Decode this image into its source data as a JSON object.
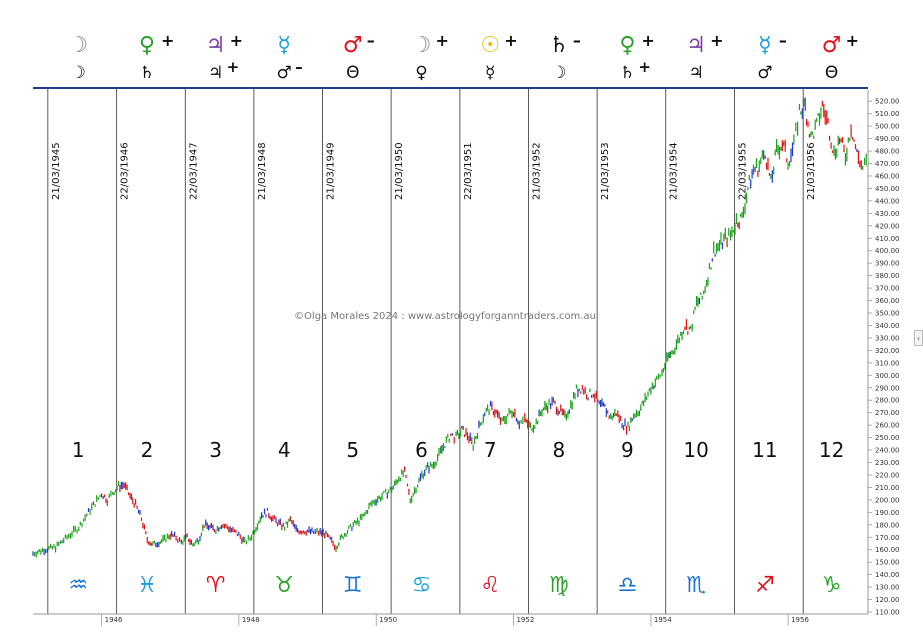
{
  "watermark": "©Olga Morales 2024 : www.astrologyforganntraders.com.au",
  "colors": {
    "moon": "#888888",
    "venus": "#2ca02c",
    "jupiter": "#7b3fa0",
    "mercury": "#1a9fd9",
    "mars": "#e0101e",
    "sun": "#f0b800",
    "saturn": "#111111",
    "bar_up": "#1aa01a",
    "bar_down": "#e01010",
    "bar_mid": "#1a3ad0"
  },
  "header": [
    {
      "top": "☽",
      "top_color": "moon",
      "top_sign": "",
      "bottom": "☽",
      "bottom_sign": ""
    },
    {
      "top": "♀",
      "top_color": "venus",
      "top_sign": "+",
      "bottom": "♄",
      "bottom_sign": ""
    },
    {
      "top": "♃",
      "top_color": "jupiter",
      "top_sign": "+",
      "bottom": "♃",
      "bottom_sign": "+"
    },
    {
      "top": "☿",
      "top_color": "mercury",
      "top_sign": "",
      "bottom": "♂",
      "bottom_sign": "–"
    },
    {
      "top": "♂",
      "top_color": "mars",
      "top_sign": "–",
      "bottom": "Θ",
      "bottom_sign": ""
    },
    {
      "top": "☽",
      "top_color": "moon",
      "top_sign": "+",
      "bottom": "♀",
      "bottom_sign": ""
    },
    {
      "top": "☉",
      "top_color": "sun",
      "top_sign": "+",
      "bottom": "☿",
      "bottom_sign": ""
    },
    {
      "top": "♄",
      "top_color": "saturn",
      "top_sign": "–",
      "bottom": "☽",
      "bottom_sign": ""
    },
    {
      "top": "♀",
      "top_color": "venus",
      "top_sign": "+",
      "bottom": "♄",
      "bottom_sign": "+"
    },
    {
      "top": "♃",
      "top_color": "jupiter",
      "top_sign": "+",
      "bottom": "♃",
      "bottom_sign": ""
    },
    {
      "top": "☿",
      "top_color": "mercury",
      "top_sign": "–",
      "bottom": "♂",
      "bottom_sign": ""
    },
    {
      "top": "♂",
      "top_color": "mars",
      "top_sign": "+",
      "bottom": "Θ",
      "bottom_sign": ""
    }
  ],
  "signs": [
    {
      "glyph": "♒",
      "color": "#1a73d9"
    },
    {
      "glyph": "♓",
      "color": "#1a9fd9"
    },
    {
      "glyph": "♈",
      "color": "#e0101e"
    },
    {
      "glyph": "♉",
      "color": "#2ca02c"
    },
    {
      "glyph": "♊",
      "color": "#1a73d9"
    },
    {
      "glyph": "♋",
      "color": "#1a9fd9"
    },
    {
      "glyph": "♌",
      "color": "#e0101e"
    },
    {
      "glyph": "♍",
      "color": "#2ca02c"
    },
    {
      "glyph": "♎",
      "color": "#1a73d9"
    },
    {
      "glyph": "♏",
      "color": "#1a73d9"
    },
    {
      "glyph": "♐",
      "color": "#e0101e"
    },
    {
      "glyph": "♑",
      "color": "#2ca02c"
    }
  ],
  "house_numbers": [
    "1",
    "2",
    "3",
    "4",
    "5",
    "6",
    "7",
    "8",
    "9",
    "10",
    "11",
    "12"
  ],
  "chart_data": {
    "type": "line",
    "title": "",
    "xlabel": "",
    "ylabel": "",
    "xlim": [
      "1945-01-01",
      "1957-03-01"
    ],
    "ylim": [
      110,
      525
    ],
    "y_ticks": [
      110,
      120,
      130,
      140,
      150,
      160,
      170,
      180,
      190,
      200,
      210,
      220,
      230,
      240,
      250,
      260,
      270,
      280,
      290,
      300,
      310,
      320,
      330,
      340,
      350,
      360,
      370,
      380,
      390,
      400,
      410,
      420,
      430,
      440,
      450,
      460,
      470,
      480,
      490,
      500,
      510,
      520
    ],
    "x_year_labels": [
      {
        "date": "1946-01-01",
        "label": "1946"
      },
      {
        "date": "1948-01-01",
        "label": "1948"
      },
      {
        "date": "1950-01-01",
        "label": "1950"
      },
      {
        "date": "1952-01-01",
        "label": "1952"
      },
      {
        "date": "1954-01-01",
        "label": "1954"
      },
      {
        "date": "1956-01-01",
        "label": "1956"
      }
    ],
    "vertical_lines": [
      {
        "date": "1945-03-21",
        "label": "21/03/1945"
      },
      {
        "date": "1946-03-22",
        "label": "22/03/1946"
      },
      {
        "date": "1947-03-22",
        "label": "22/03/1947"
      },
      {
        "date": "1948-03-21",
        "label": "21/03/1948"
      },
      {
        "date": "1949-03-21",
        "label": "21/03/1949"
      },
      {
        "date": "1950-03-21",
        "label": "21/03/1950"
      },
      {
        "date": "1951-03-22",
        "label": "22/03/1951"
      },
      {
        "date": "1952-03-21",
        "label": "21/03/1952"
      },
      {
        "date": "1953-03-21",
        "label": "21/03/1953"
      },
      {
        "date": "1954-03-21",
        "label": "21/03/1954"
      },
      {
        "date": "1955-03-22",
        "label": "22/03/1955"
      },
      {
        "date": "1956-03-21",
        "label": "21/03/1956"
      }
    ],
    "series": [
      {
        "values": [
          [
            "1945-01-01",
            157
          ],
          [
            "1945-03-01",
            160
          ],
          [
            "1945-05-01",
            162
          ],
          [
            "1945-07-01",
            170
          ],
          [
            "1945-09-01",
            178
          ],
          [
            "1945-11-01",
            192
          ],
          [
            "1946-01-01",
            205
          ],
          [
            "1946-02-01",
            200
          ],
          [
            "1946-03-01",
            206
          ],
          [
            "1946-04-01",
            211
          ],
          [
            "1946-05-01",
            212
          ],
          [
            "1946-06-01",
            203
          ],
          [
            "1946-07-01",
            196
          ],
          [
            "1946-08-01",
            185
          ],
          [
            "1946-09-01",
            168
          ],
          [
            "1946-10-01",
            164
          ],
          [
            "1946-11-01",
            166
          ],
          [
            "1946-12-01",
            168
          ],
          [
            "1947-01-01",
            172
          ],
          [
            "1947-02-01",
            170
          ],
          [
            "1947-03-01",
            166
          ],
          [
            "1947-04-01",
            170
          ],
          [
            "1947-05-01",
            164
          ],
          [
            "1947-06-01",
            168
          ],
          [
            "1947-07-01",
            180
          ],
          [
            "1947-08-01",
            178
          ],
          [
            "1947-09-01",
            176
          ],
          [
            "1947-10-01",
            180
          ],
          [
            "1947-11-01",
            178
          ],
          [
            "1947-12-01",
            175
          ],
          [
            "1948-01-01",
            172
          ],
          [
            "1948-02-01",
            166
          ],
          [
            "1948-03-01",
            169
          ],
          [
            "1948-04-01",
            178
          ],
          [
            "1948-05-01",
            188
          ],
          [
            "1948-06-01",
            190
          ],
          [
            "1948-07-01",
            185
          ],
          [
            "1948-08-01",
            181
          ],
          [
            "1948-09-01",
            178
          ],
          [
            "1948-10-01",
            184
          ],
          [
            "1948-11-01",
            176
          ],
          [
            "1948-12-01",
            175
          ],
          [
            "1949-01-01",
            175
          ],
          [
            "1949-02-01",
            174
          ],
          [
            "1949-03-01",
            174
          ],
          [
            "1949-04-01",
            173
          ],
          [
            "1949-05-01",
            168
          ],
          [
            "1949-06-01",
            162
          ],
          [
            "1949-07-01",
            170
          ],
          [
            "1949-08-01",
            175
          ],
          [
            "1949-09-01",
            180
          ],
          [
            "1949-10-01",
            183
          ],
          [
            "1949-11-01",
            188
          ],
          [
            "1949-12-01",
            196
          ],
          [
            "1950-01-01",
            200
          ],
          [
            "1950-02-01",
            203
          ],
          [
            "1950-03-01",
            206
          ],
          [
            "1950-04-01",
            210
          ],
          [
            "1950-05-01",
            218
          ],
          [
            "1950-06-01",
            222
          ],
          [
            "1950-07-01",
            200
          ],
          [
            "1950-08-01",
            210
          ],
          [
            "1950-09-01",
            220
          ],
          [
            "1950-10-01",
            226
          ],
          [
            "1950-11-01",
            228
          ],
          [
            "1950-12-01",
            236
          ],
          [
            "1951-01-01",
            245
          ],
          [
            "1951-02-01",
            252
          ],
          [
            "1951-03-01",
            250
          ],
          [
            "1951-04-01",
            256
          ],
          [
            "1951-05-01",
            252
          ],
          [
            "1951-06-01",
            244
          ],
          [
            "1951-07-01",
            258
          ],
          [
            "1951-08-01",
            270
          ],
          [
            "1951-09-01",
            274
          ],
          [
            "1951-10-01",
            270
          ],
          [
            "1951-11-01",
            262
          ],
          [
            "1951-12-01",
            268
          ],
          [
            "1952-01-01",
            272
          ],
          [
            "1952-02-01",
            262
          ],
          [
            "1952-03-01",
            264
          ],
          [
            "1952-04-01",
            258
          ],
          [
            "1952-05-01",
            262
          ],
          [
            "1952-06-01",
            272
          ],
          [
            "1952-07-01",
            276
          ],
          [
            "1952-08-01",
            278
          ],
          [
            "1952-09-01",
            272
          ],
          [
            "1952-10-01",
            266
          ],
          [
            "1952-11-01",
            276
          ],
          [
            "1952-12-01",
            288
          ],
          [
            "1953-01-01",
            290
          ],
          [
            "1953-02-01",
            284
          ],
          [
            "1953-03-01",
            286
          ],
          [
            "1953-04-01",
            276
          ],
          [
            "1953-05-01",
            274
          ],
          [
            "1953-06-01",
            266
          ],
          [
            "1953-07-01",
            270
          ],
          [
            "1953-08-01",
            262
          ],
          [
            "1953-09-01",
            258
          ],
          [
            "1953-10-01",
            268
          ],
          [
            "1953-11-01",
            272
          ],
          [
            "1953-12-01",
            280
          ],
          [
            "1954-01-01",
            290
          ],
          [
            "1954-02-01",
            296
          ],
          [
            "1954-03-01",
            302
          ],
          [
            "1954-04-01",
            314
          ],
          [
            "1954-05-01",
            320
          ],
          [
            "1954-06-01",
            330
          ],
          [
            "1954-07-01",
            340
          ],
          [
            "1954-08-01",
            336
          ],
          [
            "1954-09-01",
            358
          ],
          [
            "1954-10-01",
            362
          ],
          [
            "1954-11-01",
            380
          ],
          [
            "1954-12-01",
            400
          ],
          [
            "1955-01-01",
            404
          ],
          [
            "1955-02-01",
            410
          ],
          [
            "1955-03-01",
            412
          ],
          [
            "1955-04-01",
            424
          ],
          [
            "1955-05-01",
            426
          ],
          [
            "1955-06-01",
            450
          ],
          [
            "1955-07-01",
            465
          ],
          [
            "1955-08-01",
            468
          ],
          [
            "1955-09-01",
            480
          ],
          [
            "1955-10-01",
            454
          ],
          [
            "1955-11-01",
            480
          ],
          [
            "1955-12-01",
            486
          ],
          [
            "1956-01-01",
            472
          ],
          [
            "1956-02-01",
            484
          ],
          [
            "1956-03-01",
            512
          ],
          [
            "1956-04-01",
            516
          ],
          [
            "1956-05-01",
            490
          ],
          [
            "1956-06-01",
            500
          ],
          [
            "1956-07-01",
            516
          ],
          [
            "1956-08-01",
            502
          ],
          [
            "1956-09-01",
            478
          ],
          [
            "1956-10-01",
            490
          ],
          [
            "1956-11-01",
            476
          ],
          [
            "1956-12-01",
            500
          ],
          [
            "1957-01-01",
            478
          ],
          [
            "1957-02-01",
            466
          ],
          [
            "1957-03-01",
            472
          ]
        ]
      }
    ]
  }
}
